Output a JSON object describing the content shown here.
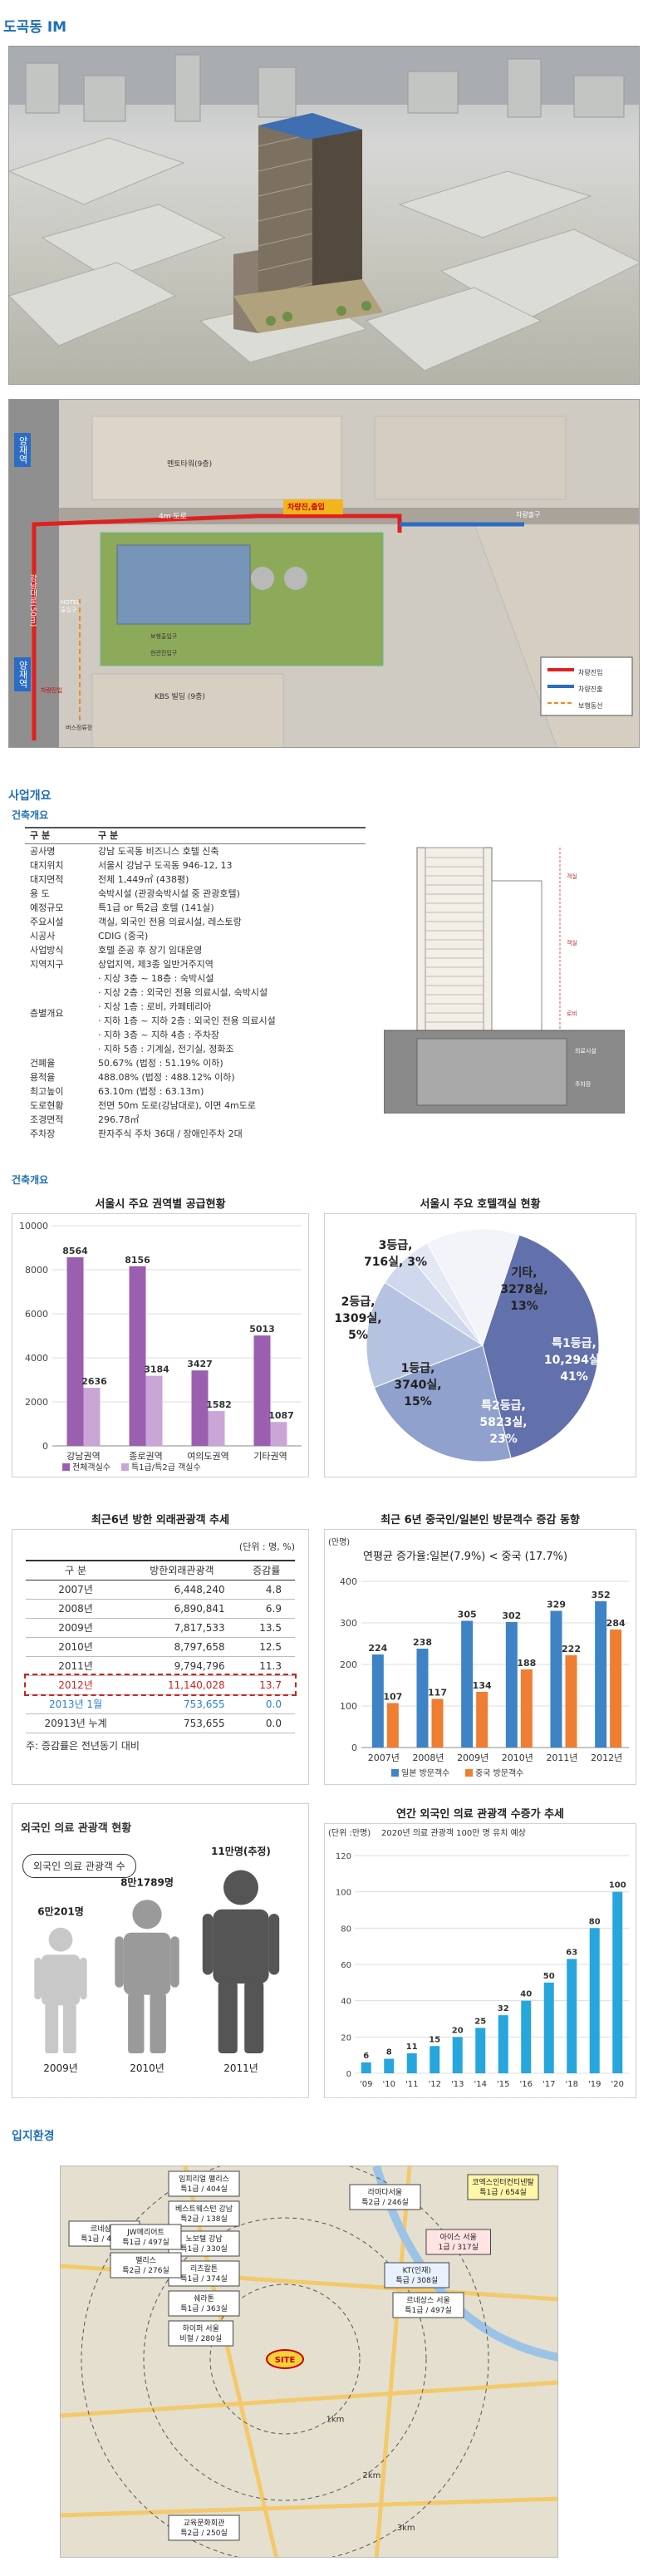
{
  "page_title": "도곡동 IM",
  "site_plan": {
    "label_mentor": "멘토타워(9층)",
    "label_road_top": "4m 도로",
    "label_entrance": "차량진,출입",
    "label_exit": "차량출구",
    "label_left_road": "강남대로(50m)",
    "label_north": "양재역",
    "label_south": "양재역",
    "label_hotel": "HOTEL 출입구",
    "label_door1": "보행출입구",
    "label_door2": "현관진입구",
    "label_kbs": "KBS 빌딩 (9층)",
    "label_bus": "버스정류장",
    "label_car_in": "차량진입",
    "legend": [
      "차량진입",
      "차량진출",
      "보행동선"
    ]
  },
  "overview": {
    "section_title": "사업개요",
    "sub_title": "건축개요",
    "head": [
      "구  분",
      "구  분"
    ],
    "rows": [
      {
        "k": "공사명",
        "v": "강남 도곡동 비즈니스 호텔 신축"
      },
      {
        "k": "대지위치",
        "v": "서울시 강남구 도곡동 946-12, 13"
      },
      {
        "k": "대지면적",
        "v": "전체 1,449㎡ (438평)"
      },
      {
        "k": "용  도",
        "v": "숙박시설 (관광숙박시설 중 관광호텔)"
      },
      {
        "k": "예정규모",
        "v": "특1급 or 특2급 호텔 (141실)"
      },
      {
        "k": "주요시설",
        "v": "객실, 외국인 전용 의료시설, 레스토랑"
      },
      {
        "k": "시공사",
        "v": "CDIG (중국)"
      },
      {
        "k": "사업방식",
        "v": "호텔 준공 후 장기 임대운영"
      },
      {
        "k": "지역지구",
        "v": "상업지역, 제3종 일반거주지역"
      }
    ],
    "floors_key": "층별개요",
    "floors": [
      "· 지상 3층 ~ 18층 : 숙박시설",
      "· 지상 2층 : 외국인 전용 의료시설, 숙박시설",
      "· 지상 1층 : 로비, 카페테리아",
      "· 지하 1층 ~ 지하 2층 : 외국인 전용 의료시설",
      "· 지하 3층 ~ 지하 4층 : 주차장",
      "· 지하 5층 : 기계실, 전기실, 정화조"
    ],
    "rows2": [
      {
        "k": "건폐율",
        "v": "50.67% (법정 : 51.19% 이하)"
      },
      {
        "k": "용적율",
        "v": "488.08% (법정 : 488.12% 이하)"
      },
      {
        "k": "최고높이",
        "v": "63.10m (법정 : 63.13m)"
      },
      {
        "k": "도로현황",
        "v": "전면 50m 도로(강남대로), 이면 4m도로"
      },
      {
        "k": "조경면적",
        "v": "296.78㎡"
      },
      {
        "k": "주차장",
        "v": "판자주식 주차 36대 / 장애인주차 2대"
      }
    ],
    "section_labels": [
      "객실",
      "객실",
      "로비",
      "의료시설",
      "주차장"
    ]
  },
  "charts_section_title": "건축개요",
  "chart_supply": {
    "title": "서울시 주요 권역별 공급현황",
    "chart_data": {
      "type": "bar",
      "categories": [
        "강남권역",
        "종로권역",
        "여의도권역",
        "기타권역"
      ],
      "series": [
        {
          "name": "전체객실수",
          "values": [
            8564,
            8156,
            3427,
            5013
          ],
          "color": "#9b5fb0"
        },
        {
          "name": "특1급/특2급 객실수",
          "values": [
            2636,
            3184,
            1582,
            1087
          ],
          "color": "#c9a6d6"
        }
      ],
      "ylim": [
        0,
        10000
      ],
      "yticks": [
        "0",
        "2000",
        "4000",
        "6000",
        "8000",
        "10000"
      ],
      "legend": "bottom"
    }
  },
  "chart_hotel": {
    "title": "서울시 주요 호텔객실 현황",
    "chart_data": {
      "type": "pie",
      "slices": [
        {
          "label": "특1등급,\n10,294실,\n41%",
          "value": 41,
          "color": "#6271ab"
        },
        {
          "label": "특2등급,\n5823실,\n23%",
          "value": 23,
          "color": "#8fa1cc"
        },
        {
          "label": "1등급,\n3740실,\n15%",
          "value": 15,
          "color": "#b6c3e0"
        },
        {
          "label": "2등급,\n1309실,\n5%",
          "value": 5,
          "color": "#cfd8ec"
        },
        {
          "label": "3등급,\n716실, 3%",
          "value": 3,
          "color": "#e3e8f4"
        },
        {
          "label": "기타,\n3278실,\n13%",
          "value": 13,
          "color": "#f2f4fa"
        }
      ]
    }
  },
  "table_tourist": {
    "title": "최근6년 방한 외래관광객 추세",
    "unit": "(단위 : 명, %)",
    "head": [
      "구  분",
      "방한외래관광객",
      "증감률"
    ],
    "rows": [
      [
        "2007년",
        "6,448,240",
        "4.8"
      ],
      [
        "2008년",
        "6,890,841",
        "6.9"
      ],
      [
        "2009년",
        "7,817,533",
        "13.5"
      ],
      [
        "2010년",
        "8,797,658",
        "12.5"
      ],
      [
        "2011년",
        "9,794,796",
        "11.3"
      ],
      [
        "2012년",
        "11,140,028",
        "13.7"
      ],
      [
        "2013년 1월",
        "753,655",
        "0.0"
      ],
      [
        "20913년 누계",
        "753,655",
        "0.0"
      ]
    ],
    "note": "주: 증감률은 전년동기 대비"
  },
  "chart_cn_jp": {
    "title": "최근 6년 중국인/일본인 방문객수 증감 동향",
    "ylabel": "(만명)",
    "subtitle": "연평균 증가율:일본(7.9%) < 중국 (17.7%)",
    "chart_data": {
      "type": "bar",
      "categories": [
        "2007년",
        "2008년",
        "2009년",
        "2010년",
        "2011년",
        "2012년"
      ],
      "series": [
        {
          "name": "일본 방문객수",
          "values": [
            224,
            238,
            305,
            302,
            329,
            352
          ],
          "color": "#3d83c5"
        },
        {
          "name": "중국 방문객수",
          "values": [
            107,
            117,
            134,
            188,
            222,
            284
          ],
          "color": "#ef7d32"
        }
      ],
      "ylim": [
        0,
        400
      ],
      "yticks": [
        "0",
        "100",
        "200",
        "300",
        "400"
      ],
      "legend": "bottom"
    }
  },
  "medical_status": {
    "title": "외국인 의료 관광객 현황",
    "bubble": "외국인 의료 관광객 수",
    "items": [
      {
        "value": "6만201명",
        "year": "2009년",
        "color": "#c8c8c8"
      },
      {
        "value": "8만1789명",
        "year": "2010년",
        "color": "#9a9a9a"
      },
      {
        "value": "11만명(추정)",
        "year": "2011년",
        "color": "#555555"
      }
    ]
  },
  "chart_medical": {
    "title": "연간 외국인 의료 관광객 수증가 추세",
    "unit": "(단위 :만명)",
    "subtitle": "2020년 의료 관광객 100만 명 유치 예상",
    "chart_data": {
      "type": "bar",
      "categories": [
        "'09",
        "'10",
        "'11",
        "'12",
        "'13",
        "'14",
        "'15",
        "'16",
        "'17",
        "'18",
        "'19",
        "'20"
      ],
      "values": [
        6,
        8,
        11,
        15,
        20,
        25,
        32,
        40,
        50,
        63,
        80,
        100
      ],
      "color": "#27a6dd",
      "ylim": [
        0,
        120
      ],
      "yticks": [
        "0",
        "20",
        "40",
        "60",
        "80",
        "100",
        "120"
      ]
    }
  },
  "location": {
    "section_title": "입지환경",
    "site": "SITE",
    "rings": [
      "1km",
      "2km",
      "3km"
    ],
    "hotels": [
      "임피리얼 팰리스\n특1급 / 404실",
      "베스트웨스턴 강남\n특2급 / 138실",
      "노보텔 강남\n특1급 / 330실",
      "리츠칼튼\n특1급 / 374실",
      "쉐라톤\n특1급 / 363실",
      "르네상스\n특1급 / 493실",
      "JW메리어트\n특1급 / 497실",
      "팰리스\n특2급 / 276실",
      "라마다서울\n특2급 / 246실",
      "코엑스인터컨티넨탈\n특1급 / 654실",
      "하이퍼 서울\n비절 / 280실",
      "KT(인재)\n특급 / 308실",
      "아이스 서울\n1급 / 317실",
      "르네상스 서울\n특1급 / 497실",
      "교육문화회관\n특2급 / 250실"
    ]
  }
}
